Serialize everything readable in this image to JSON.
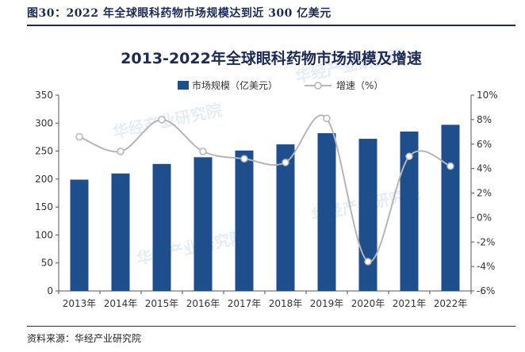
{
  "figure": {
    "caption": "图30：2022 年全球眼科药物市场规模达到近 300 亿美元",
    "source": "资料来源：华经产业研究院",
    "watermark": "华经产业研究院"
  },
  "colors": {
    "bar": "#1f4e8c",
    "line": "#b5b5b5",
    "marker": "#ffffff",
    "caption": "#1b2a56"
  },
  "chart_data": {
    "type": "bar",
    "title": "2013-2022年全球眼科药物市场规模及增速",
    "categories": [
      "2013年",
      "2014年",
      "2015年",
      "2016年",
      "2017年",
      "2018年",
      "2019年",
      "2020年",
      "2021年",
      "2022年"
    ],
    "series": [
      {
        "name": "市场规模（亿美元）",
        "type": "bar",
        "axis": "left",
        "values": [
          199,
          210,
          227,
          239,
          251,
          262,
          282,
          272,
          285,
          297
        ]
      },
      {
        "name": "增速（%）",
        "type": "line",
        "axis": "right",
        "values": [
          6.6,
          5.4,
          8.0,
          5.4,
          4.8,
          4.5,
          8.1,
          -3.6,
          5.0,
          4.2
        ]
      }
    ],
    "y_left": {
      "min": 0,
      "max": 350,
      "ticks": [
        "0",
        "50",
        "100",
        "150",
        "200",
        "250",
        "300",
        "350"
      ]
    },
    "y_right": {
      "min": -6,
      "max": 10,
      "ticks": [
        "-6%",
        "-4%",
        "-2%",
        "0%",
        "2%",
        "4%",
        "6%",
        "8%",
        "10%"
      ]
    },
    "legend_position": "top",
    "grid": false
  }
}
